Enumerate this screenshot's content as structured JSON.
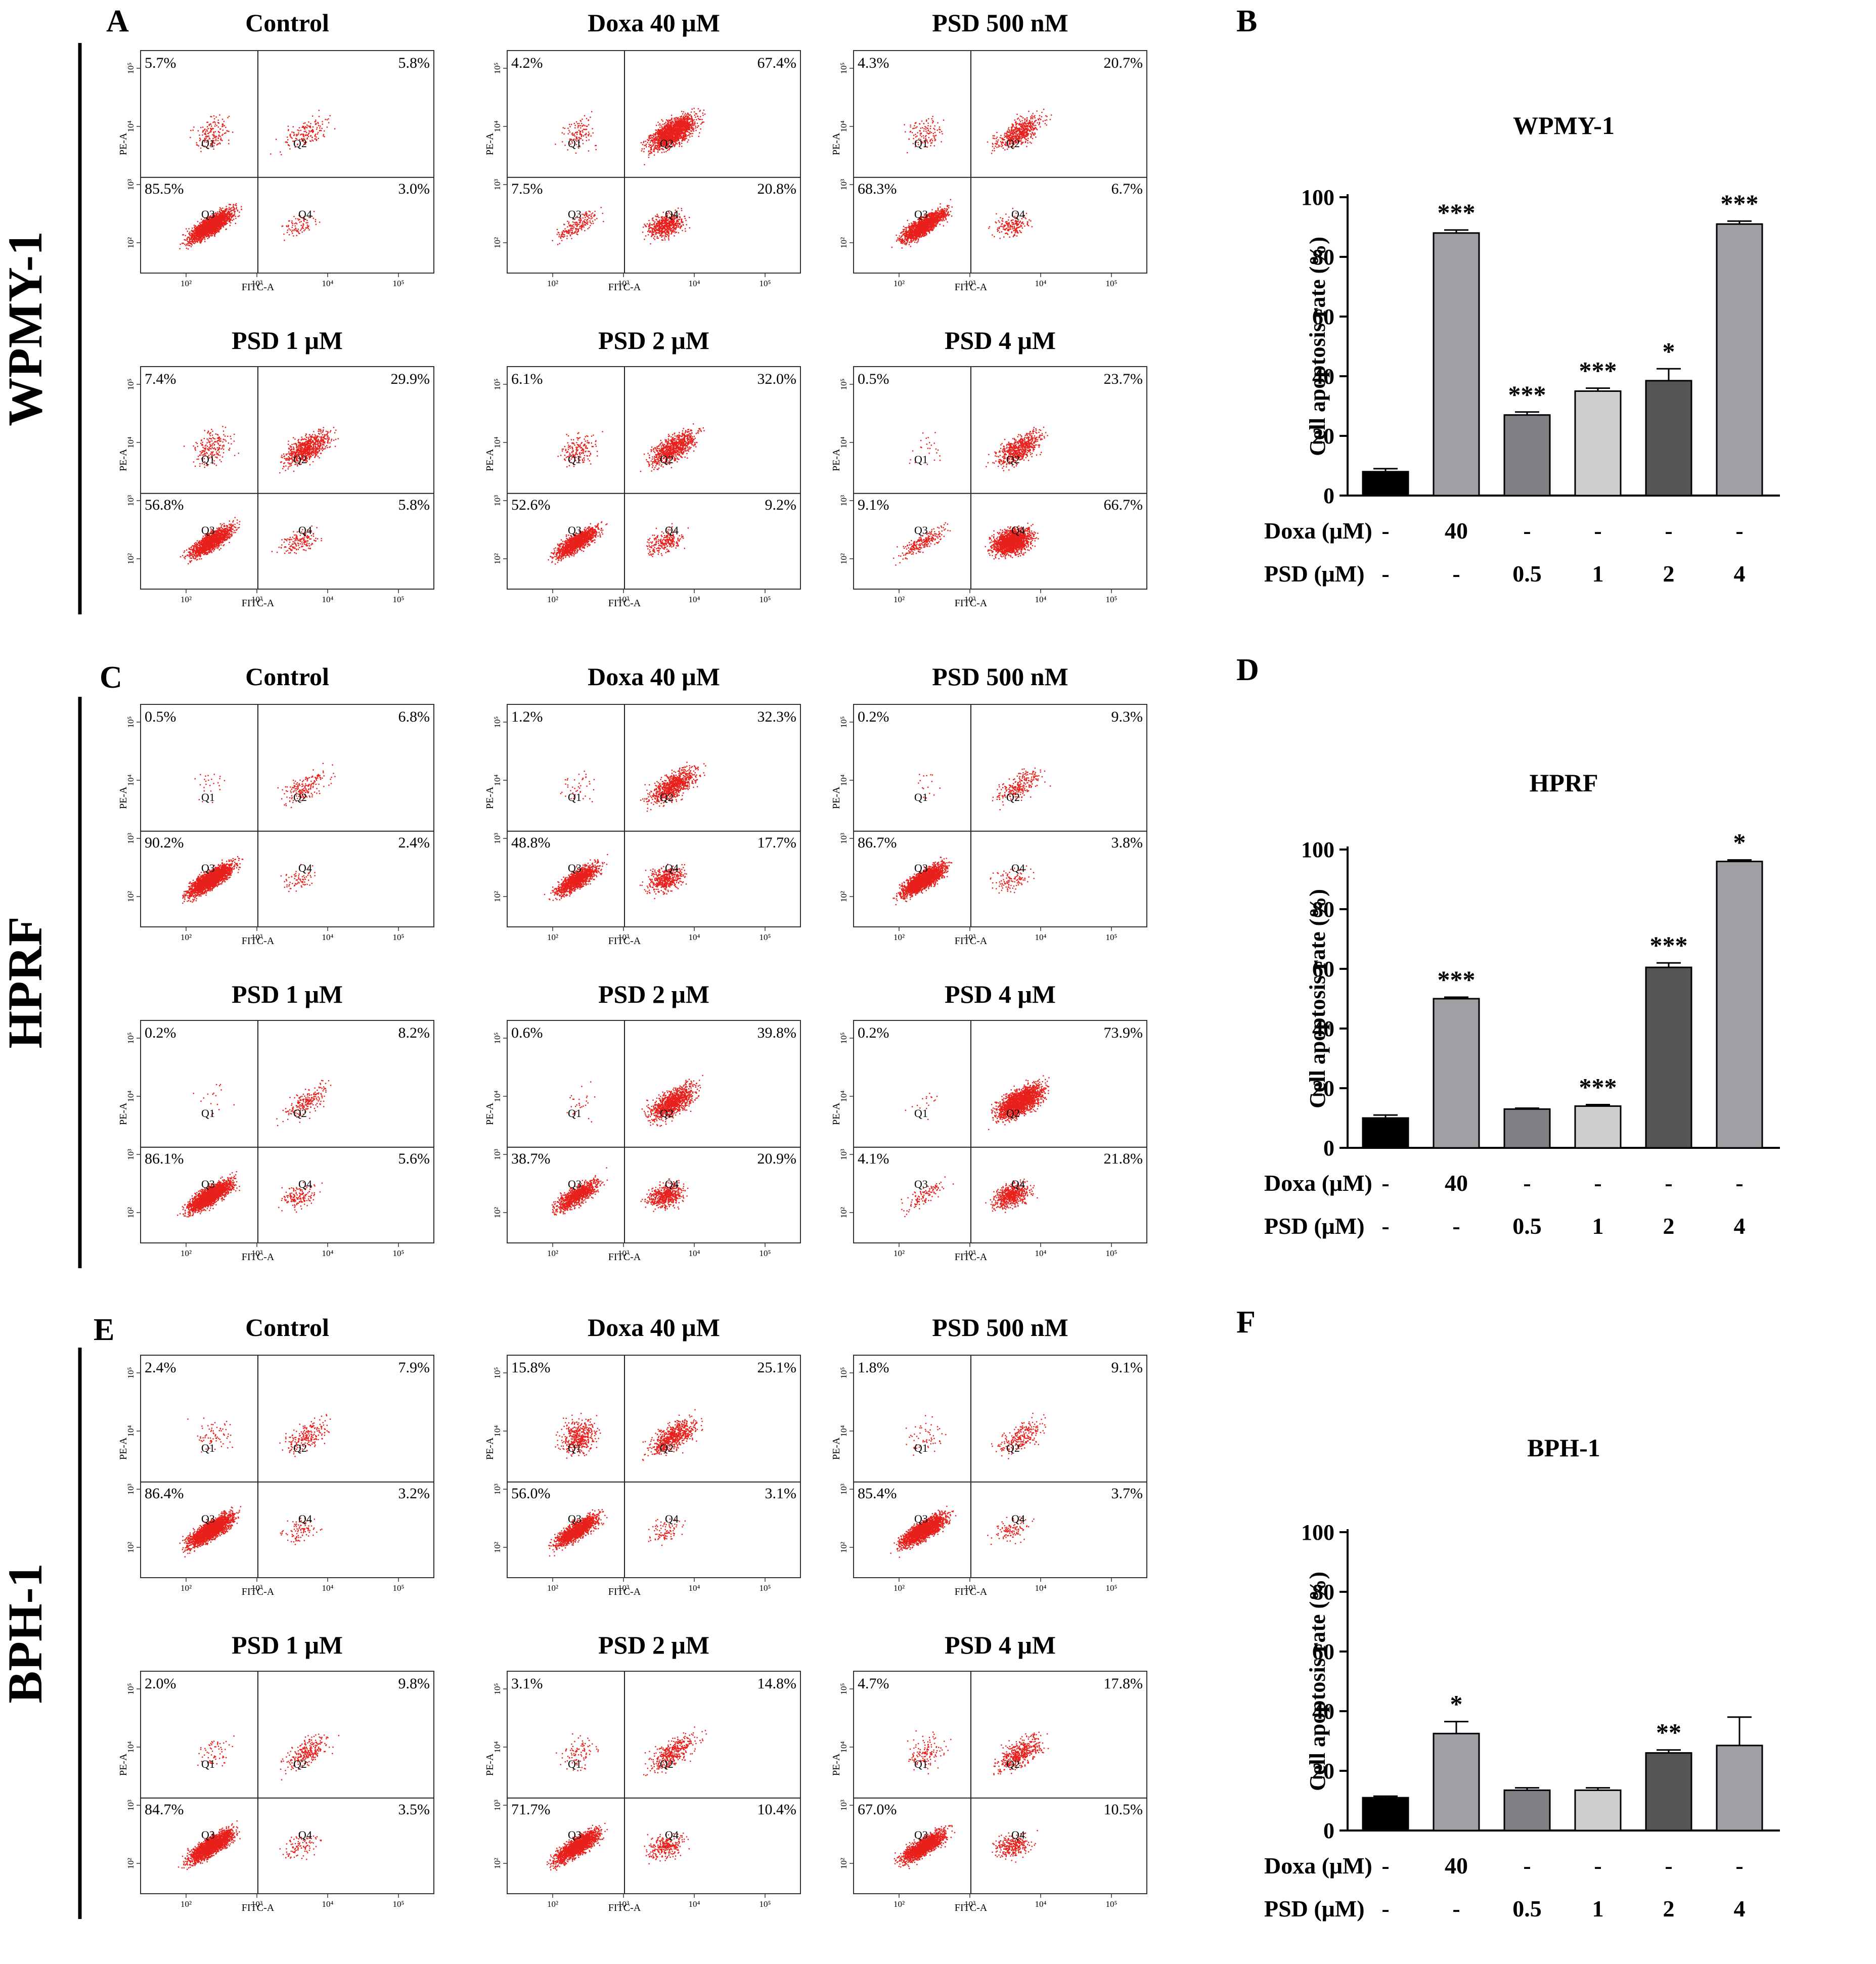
{
  "panel_labels": {
    "a": "A",
    "b": "B",
    "c": "C",
    "d": "D",
    "e": "E",
    "f": "F"
  },
  "axis_text": {
    "x": "FITC-A",
    "y": "PE-A",
    "q1": "Q1",
    "q2": "Q2",
    "q3": "Q3",
    "q4": "Q4",
    "xticks": [
      "10²",
      "10³",
      "10⁴",
      "10⁵"
    ],
    "yticks": [
      "10²",
      "10³",
      "10⁴",
      "10⁵"
    ]
  },
  "flow_sections": [
    {
      "cell_line": "WPMY-1",
      "panel": "A",
      "plots": [
        {
          "title": "Control",
          "ul": "5.7%",
          "ur": "5.8%",
          "ll": "85.5%",
          "lr": "3.0%"
        },
        {
          "title": "Doxa 40 μM",
          "ul": "4.2%",
          "ur": "67.4%",
          "ll": "7.5%",
          "lr": "20.8%"
        },
        {
          "title": "PSD  500 nM",
          "ul": "4.3%",
          "ur": "20.7%",
          "ll": "68.3%",
          "lr": "6.7%"
        },
        {
          "title": "PSD 1 μM",
          "ul": "7.4%",
          "ur": "29.9%",
          "ll": "56.8%",
          "lr": "5.8%"
        },
        {
          "title": "PSD  2 μM",
          "ul": "6.1%",
          "ur": "32.0%",
          "ll": "52.6%",
          "lr": "9.2%"
        },
        {
          "title": "PSD 4 μM",
          "ul": "0.5%",
          "ur": "23.7%",
          "ll": "9.1%",
          "lr": "66.7%"
        }
      ]
    },
    {
      "cell_line": "HPRF",
      "panel": "C",
      "plots": [
        {
          "title": "Control",
          "ul": "0.5%",
          "ur": "6.8%",
          "ll": "90.2%",
          "lr": "2.4%"
        },
        {
          "title": "Doxa 40 μM",
          "ul": "1.2%",
          "ur": "32.3%",
          "ll": "48.8%",
          "lr": "17.7%"
        },
        {
          "title": "PSD  500 nM",
          "ul": "0.2%",
          "ur": "9.3%",
          "ll": "86.7%",
          "lr": "3.8%"
        },
        {
          "title": "PSD 1 μM",
          "ul": "0.2%",
          "ur": "8.2%",
          "ll": "86.1%",
          "lr": "5.6%"
        },
        {
          "title": "PSD  2 μM",
          "ul": "0.6%",
          "ur": "39.8%",
          "ll": "38.7%",
          "lr": "20.9%"
        },
        {
          "title": "PSD 4 μM",
          "ul": "0.2%",
          "ur": "73.9%",
          "ll": "4.1%",
          "lr": "21.8%"
        }
      ]
    },
    {
      "cell_line": "BPH-1",
      "panel": "E",
      "plots": [
        {
          "title": "Control",
          "ul": "2.4%",
          "ur": "7.9%",
          "ll": "86.4%",
          "lr": "3.2%"
        },
        {
          "title": "Doxa 40 μM",
          "ul": "15.8%",
          "ur": "25.1%",
          "ll": "56.0%",
          "lr": "3.1%"
        },
        {
          "title": "PSD  500 nM",
          "ul": "1.8%",
          "ur": "9.1%",
          "ll": "85.4%",
          "lr": "3.7%"
        },
        {
          "title": "PSD 1 μM",
          "ul": "2.0%",
          "ur": "9.8%",
          "ll": "84.7%",
          "lr": "3.5%"
        },
        {
          "title": "PSD  2 μM",
          "ul": "3.1%",
          "ur": "14.8%",
          "ll": "71.7%",
          "lr": "10.4%"
        },
        {
          "title": "PSD 4 μM",
          "ul": "4.7%",
          "ur": "17.8%",
          "ll": "67.0%",
          "lr": "10.5%"
        }
      ]
    }
  ],
  "chart_data": [
    {
      "type": "bar",
      "panel": "B",
      "title": "WPMY-1",
      "ylabel": "Cell apoptosis rate (%)",
      "ylim": [
        0,
        100
      ],
      "yticks": [
        0,
        20,
        40,
        60,
        80,
        100
      ],
      "categories": [
        "Control",
        "Doxa 40",
        "PSD 0.5",
        "PSD 1",
        "PSD 2",
        "PSD 4"
      ],
      "values": [
        8,
        88,
        27,
        35,
        38.5,
        91
      ],
      "errors": [
        1,
        1,
        1,
        1,
        4,
        1
      ],
      "significance": [
        "",
        "***",
        "***",
        "***",
        "*",
        "***"
      ],
      "colors": [
        "#000000",
        "#a0a0a4",
        "#808084",
        "#cfcfcf",
        "#555555",
        "#a0a0a4"
      ],
      "doxa_label": "Doxa (μM)",
      "psd_label": "PSD  (μM)",
      "doxa_row": [
        "-",
        "40",
        "-",
        "-",
        "-",
        "-"
      ],
      "psd_row": [
        "-",
        "-",
        "0.5",
        "1",
        "2",
        "4"
      ]
    },
    {
      "type": "bar",
      "panel": "D",
      "title": "HPRF",
      "ylabel": "Cell apoptosis rate (%)",
      "ylim": [
        0,
        100
      ],
      "yticks": [
        0,
        20,
        40,
        60,
        80,
        100
      ],
      "categories": [
        "Control",
        "Doxa 40",
        "PSD 0.5",
        "PSD 1",
        "PSD 2",
        "PSD 4"
      ],
      "values": [
        10,
        50,
        13,
        14,
        60.5,
        96
      ],
      "errors": [
        1,
        0.5,
        0.3,
        0.5,
        1.5,
        0.5
      ],
      "significance": [
        "",
        "***",
        "",
        "***",
        "***",
        "*"
      ],
      "colors": [
        "#000000",
        "#a0a0a4",
        "#808084",
        "#cfcfcf",
        "#555555",
        "#a0a0a4"
      ],
      "doxa_label": "Doxa (μM)",
      "psd_label": "PSD  (μM)",
      "doxa_row": [
        "-",
        "40",
        "-",
        "-",
        "-",
        "-"
      ],
      "psd_row": [
        "-",
        "-",
        "0.5",
        "1",
        "2",
        "4"
      ]
    },
    {
      "type": "bar",
      "panel": "F",
      "title": "BPH-1",
      "ylabel": "Cell apoptosis rate (%)",
      "ylim": [
        0,
        100
      ],
      "yticks": [
        0,
        20,
        40,
        60,
        80,
        100
      ],
      "categories": [
        "Control",
        "Doxa 40",
        "PSD 0.5",
        "PSD 1",
        "PSD 2",
        "PSD 4"
      ],
      "values": [
        11,
        32.5,
        13.5,
        13.5,
        26,
        28.5
      ],
      "errors": [
        0.5,
        4,
        0.8,
        0.8,
        1,
        9.5
      ],
      "significance": [
        "",
        "*",
        "",
        "",
        "**",
        ""
      ],
      "colors": [
        "#000000",
        "#a0a0a4",
        "#808084",
        "#cfcfcf",
        "#555555",
        "#a0a0a4"
      ],
      "doxa_label": "Doxa (μM)",
      "psd_label": "PSD  (μM)",
      "doxa_row": [
        "-",
        "40",
        "-",
        "-",
        "-",
        "-"
      ],
      "psd_row": [
        "-",
        "-",
        "0.5",
        "1",
        "2",
        "4"
      ]
    }
  ]
}
